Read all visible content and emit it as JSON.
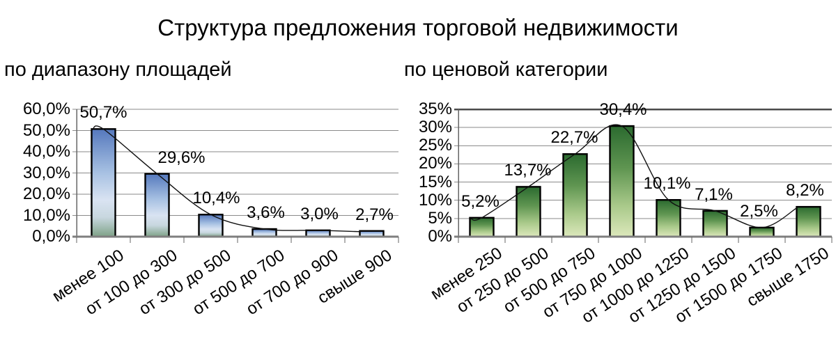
{
  "title": "Структура предложения торговой недвижимости",
  "colors": {
    "background": "#ffffff",
    "text": "#000000",
    "gridline": "#8a8a8a",
    "axis": "#7f7f7f",
    "plot_top_border": "#4a4a4a",
    "bar_border": "#000000",
    "trendline": "#111111"
  },
  "chart_data": [
    {
      "type": "bar",
      "title": "по диапазону площадей",
      "categories": [
        "менее 100",
        "от 100 до 300",
        "от 300 до 500",
        "от 500 до 700",
        "от 700 до 900",
        "свыше 900"
      ],
      "values": [
        50.7,
        29.6,
        10.4,
        3.6,
        3.0,
        2.7
      ],
      "data_labels": [
        "50,7%",
        "29,6%",
        "10,4%",
        "3,6%",
        "3,0%",
        "2,7%"
      ],
      "xlabel": "",
      "ylabel": "",
      "ylim": [
        0,
        60
      ],
      "y_tick_step": 10,
      "y_tick_labels": [
        "60,0%",
        "50,0%",
        "40,0%",
        "30,0%",
        "20,0%",
        "10,0%",
        "0,0%"
      ],
      "grid": true,
      "legend_position": "none",
      "trendline": true,
      "bar_gradient": [
        [
          "0%",
          "#5578bd"
        ],
        [
          "40%",
          "#a6c0e2"
        ],
        [
          "66%",
          "#d9e3f2"
        ],
        [
          "82%",
          "#c8d7df"
        ],
        [
          "100%",
          "#7ea287"
        ]
      ]
    },
    {
      "type": "bar",
      "title": "по ценовой категории",
      "categories": [
        "менее 250",
        "от 250 до 500",
        "от 500 до 750",
        "от 750 до 1000",
        "от 1000 до 1250",
        "от 1250 до 1500",
        "от 1500 до 1750",
        "свыше 1750"
      ],
      "values": [
        5.2,
        13.7,
        22.7,
        30.4,
        10.1,
        7.1,
        2.5,
        8.2
      ],
      "data_labels": [
        "5,2%",
        "13,7%",
        "22,7%",
        "30,4%",
        "10,1%",
        "7,1%",
        "2,5%",
        "8,2%"
      ],
      "xlabel": "",
      "ylabel": "",
      "ylim": [
        0,
        35
      ],
      "y_tick_step": 5,
      "y_tick_labels": [
        "35%",
        "30%",
        "25%",
        "20%",
        "15%",
        "10%",
        "5%",
        "0%"
      ],
      "grid": true,
      "legend_position": "none",
      "trendline": true,
      "bar_gradient": [
        [
          "0%",
          "#2b6a2f"
        ],
        [
          "38%",
          "#5f9551"
        ],
        [
          "72%",
          "#a9c98a"
        ],
        [
          "100%",
          "#dce8bb"
        ]
      ]
    }
  ]
}
